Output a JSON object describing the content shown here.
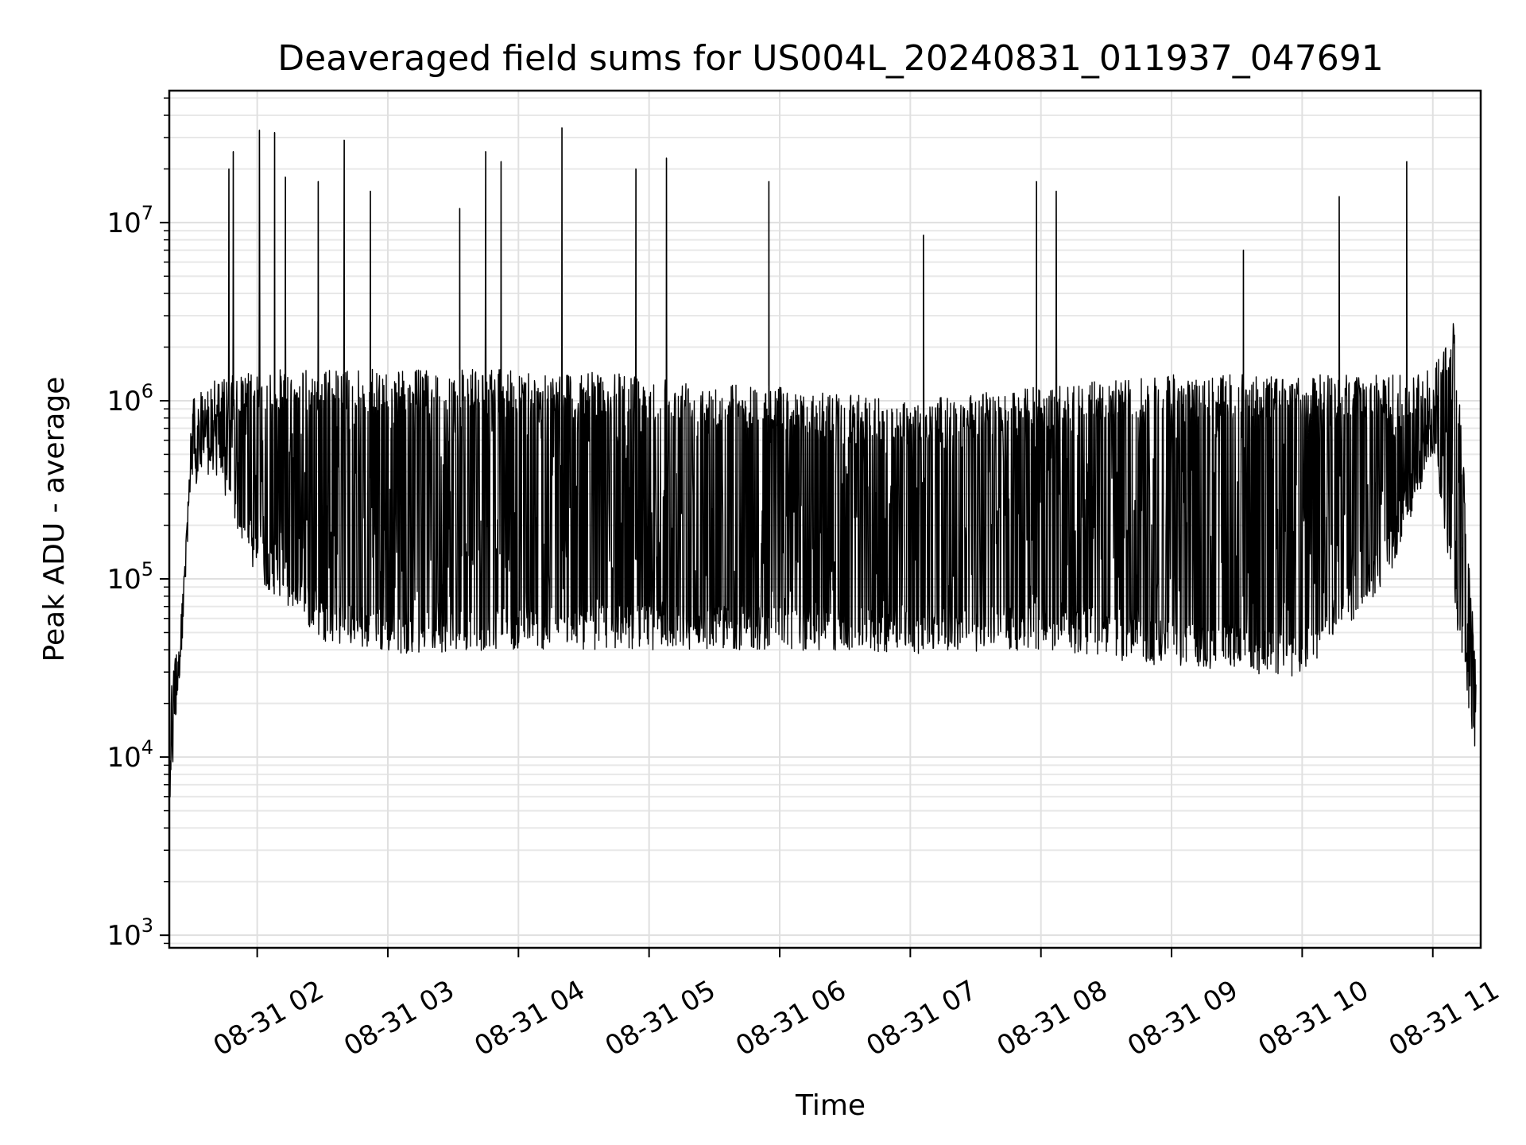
{
  "chart_data": {
    "type": "line",
    "title": "Deaveraged field sums for US004L_20240831_011937_047691",
    "xlabel": "Time",
    "ylabel": "Peak ADU - average",
    "yscale": "log",
    "ylim": [
      850,
      55000000
    ],
    "xlim": [
      "2024-08-31T01:19:37",
      "2024-08-31T11:22:00"
    ],
    "grid": "on",
    "legend": "none",
    "line_color": "#000000",
    "x_ticks": [
      {
        "time": "2024-08-31T02:00:00",
        "label": "08-31 02"
      },
      {
        "time": "2024-08-31T03:00:00",
        "label": "08-31 03"
      },
      {
        "time": "2024-08-31T04:00:00",
        "label": "08-31 04"
      },
      {
        "time": "2024-08-31T05:00:00",
        "label": "08-31 05"
      },
      {
        "time": "2024-08-31T06:00:00",
        "label": "08-31 06"
      },
      {
        "time": "2024-08-31T07:00:00",
        "label": "08-31 07"
      },
      {
        "time": "2024-08-31T08:00:00",
        "label": "08-31 08"
      },
      {
        "time": "2024-08-31T09:00:00",
        "label": "08-31 09"
      },
      {
        "time": "2024-08-31T10:00:00",
        "label": "08-31 10"
      },
      {
        "time": "2024-08-31T11:00:00",
        "label": "08-31 11"
      }
    ],
    "y_ticks": [
      {
        "value": 1000,
        "base": "10",
        "exp": "3"
      },
      {
        "value": 10000,
        "base": "10",
        "exp": "4"
      },
      {
        "value": 100000,
        "base": "10",
        "exp": "5"
      },
      {
        "value": 1000000,
        "base": "10",
        "exp": "6"
      },
      {
        "value": 10000000,
        "base": "10",
        "exp": "7"
      }
    ],
    "series": [
      {
        "envelope": [
          {
            "time": "2024-08-31T01:20:00",
            "low": 5000,
            "high": 30000
          },
          {
            "time": "2024-08-31T01:25:00",
            "low": 35000,
            "high": 60000
          },
          {
            "time": "2024-08-31T01:30:00",
            "low": 300000,
            "high": 1000000
          },
          {
            "time": "2024-08-31T01:40:00",
            "low": 400000,
            "high": 1300000
          },
          {
            "time": "2024-08-31T02:00:00",
            "low": 100000,
            "high": 1500000
          },
          {
            "time": "2024-08-31T02:30:00",
            "low": 45000,
            "high": 1500000
          },
          {
            "time": "2024-08-31T03:00:00",
            "low": 38000,
            "high": 1500000
          },
          {
            "time": "2024-08-31T04:00:00",
            "low": 40000,
            "high": 1500000
          },
          {
            "time": "2024-08-31T05:00:00",
            "low": 40000,
            "high": 1400000
          },
          {
            "time": "2024-08-31T06:00:00",
            "low": 40000,
            "high": 1200000
          },
          {
            "time": "2024-08-31T07:00:00",
            "low": 38000,
            "high": 1000000
          },
          {
            "time": "2024-08-31T08:00:00",
            "low": 40000,
            "high": 1200000
          },
          {
            "time": "2024-08-31T09:00:00",
            "low": 32000,
            "high": 1400000
          },
          {
            "time": "2024-08-31T10:00:00",
            "low": 28000,
            "high": 1400000
          },
          {
            "time": "2024-08-31T10:40:00",
            "low": 100000,
            "high": 1400000
          },
          {
            "time": "2024-08-31T11:00:00",
            "low": 500000,
            "high": 1500000
          },
          {
            "time": "2024-08-31T11:10:00",
            "low": 60000,
            "high": 3000000
          },
          {
            "time": "2024-08-31T11:20:00",
            "low": 10000,
            "high": 30000
          }
        ],
        "spikes": [
          {
            "time": "2024-08-31T01:47:00",
            "value": 20000000
          },
          {
            "time": "2024-08-31T01:49:00",
            "value": 25000000
          },
          {
            "time": "2024-08-31T02:01:00",
            "value": 33000000
          },
          {
            "time": "2024-08-31T02:08:00",
            "value": 32000000
          },
          {
            "time": "2024-08-31T02:13:00",
            "value": 18000000
          },
          {
            "time": "2024-08-31T02:28:00",
            "value": 17000000
          },
          {
            "time": "2024-08-31T02:40:00",
            "value": 29000000
          },
          {
            "time": "2024-08-31T02:52:00",
            "value": 15000000
          },
          {
            "time": "2024-08-31T03:33:00",
            "value": 12000000
          },
          {
            "time": "2024-08-31T03:45:00",
            "value": 25000000
          },
          {
            "time": "2024-08-31T03:52:00",
            "value": 22000000
          },
          {
            "time": "2024-08-31T04:20:00",
            "value": 34000000
          },
          {
            "time": "2024-08-31T04:54:00",
            "value": 20000000
          },
          {
            "time": "2024-08-31T05:08:00",
            "value": 23000000
          },
          {
            "time": "2024-08-31T05:55:00",
            "value": 17000000
          },
          {
            "time": "2024-08-31T07:06:00",
            "value": 8500000
          },
          {
            "time": "2024-08-31T07:58:00",
            "value": 17000000
          },
          {
            "time": "2024-08-31T08:07:00",
            "value": 15000000
          },
          {
            "time": "2024-08-31T09:33:00",
            "value": 7000000
          },
          {
            "time": "2024-08-31T10:17:00",
            "value": 14000000
          },
          {
            "time": "2024-08-31T10:48:00",
            "value": 22000000
          }
        ]
      }
    ]
  }
}
